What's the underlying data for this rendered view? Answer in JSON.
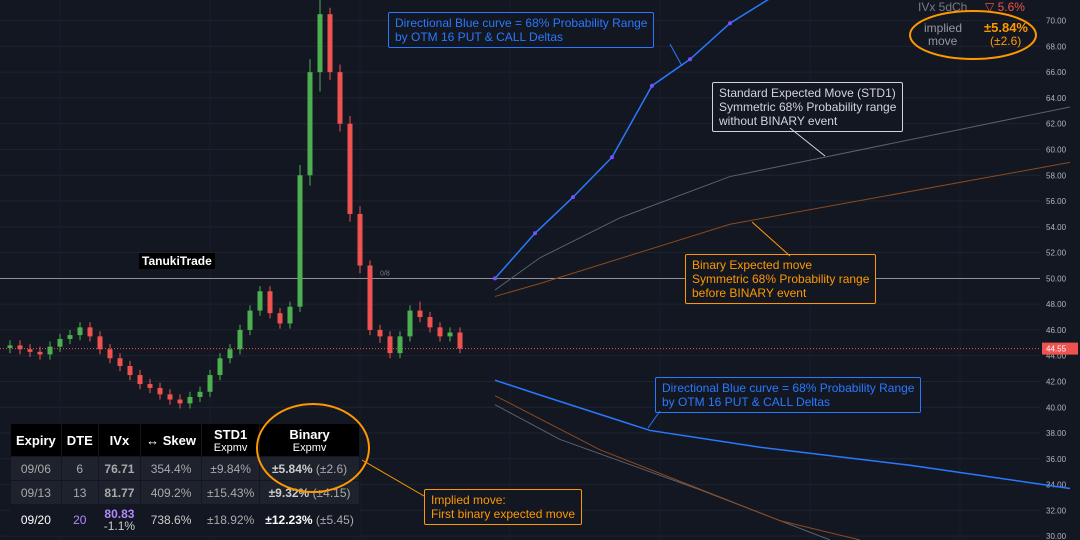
{
  "chart_data": {
    "type": "candlestick",
    "xlim": [
      -1,
      107
    ],
    "ylim": [
      29.7,
      71.6
    ],
    "yticks": [
      {
        "value": 30,
        "label": "30.00"
      },
      {
        "value": 32,
        "label": "32.00"
      },
      {
        "value": 34,
        "label": "34.00"
      },
      {
        "value": 36,
        "label": "36.00"
      },
      {
        "value": 38,
        "label": "38.00"
      },
      {
        "value": 40,
        "label": "40.00"
      },
      {
        "value": 42,
        "label": "42.00"
      },
      {
        "value": 44,
        "label": "44.00"
      },
      {
        "value": 46,
        "label": "46.00"
      },
      {
        "value": 48,
        "label": "48.00"
      },
      {
        "value": 50,
        "label": "50.00"
      },
      {
        "value": 52,
        "label": "52.00"
      },
      {
        "value": 54,
        "label": "54.00"
      },
      {
        "value": 56,
        "label": "56.00"
      },
      {
        "value": 58,
        "label": "58.00"
      },
      {
        "value": 60,
        "label": "60.00"
      },
      {
        "value": 62,
        "label": "62.00"
      },
      {
        "value": 64,
        "label": "64.00"
      },
      {
        "value": 66,
        "label": "66.00"
      },
      {
        "value": 68,
        "label": "68.00"
      },
      {
        "value": 70,
        "label": "70.00"
      }
    ],
    "grid": true,
    "up_color": "#4caf50",
    "down_color": "#ef5350",
    "open": [
      44.6,
      44.8,
      44.5,
      44.3,
      44.1,
      44.7,
      45.3,
      45.6,
      46.2,
      45.5,
      44.5,
      43.8,
      43.2,
      42.5,
      41.8,
      41.5,
      41.0,
      40.6,
      40.3,
      40.8,
      41.2,
      42.5,
      43.8,
      44.5,
      46.0,
      47.5,
      49.0,
      47.3,
      46.5,
      47.8,
      58.0,
      66.0,
      70.5,
      66.0,
      62.0,
      55.0,
      51.0,
      46.0,
      45.5,
      44.2,
      45.5,
      47.5,
      47.0,
      46.2,
      45.5,
      45.8
    ],
    "high": [
      45.2,
      45.2,
      44.9,
      44.7,
      45.1,
      45.7,
      46.0,
      46.6,
      46.6,
      45.9,
      44.9,
      44.2,
      43.6,
      42.9,
      42.2,
      41.9,
      41.4,
      41.0,
      41.2,
      41.6,
      42.9,
      44.2,
      44.9,
      46.4,
      47.9,
      49.4,
      49.4,
      47.7,
      48.2,
      58.8,
      67.0,
      72.0,
      71.0,
      66.6,
      62.6,
      55.6,
      51.4,
      46.4,
      45.9,
      45.9,
      47.9,
      48.2,
      47.4,
      46.6,
      46.2,
      46.2
    ],
    "low": [
      44.2,
      44.1,
      43.9,
      43.7,
      43.7,
      44.3,
      44.9,
      45.2,
      45.1,
      44.1,
      43.4,
      42.8,
      42.1,
      41.4,
      41.1,
      40.6,
      40.2,
      39.9,
      39.9,
      40.4,
      40.8,
      42.1,
      43.4,
      44.1,
      45.6,
      47.1,
      46.9,
      46.1,
      46.1,
      47.4,
      57.2,
      64.5,
      65.4,
      61.4,
      54.4,
      50.4,
      45.6,
      45.0,
      43.8,
      43.8,
      45.1,
      46.6,
      45.8,
      45.1,
      45.1,
      44.2
    ],
    "close": [
      44.8,
      44.5,
      44.3,
      44.1,
      44.7,
      45.3,
      45.6,
      46.2,
      45.5,
      44.5,
      43.8,
      43.2,
      42.5,
      41.8,
      41.5,
      41.0,
      40.6,
      40.3,
      40.8,
      41.2,
      42.5,
      43.8,
      44.5,
      46.0,
      47.5,
      49.0,
      47.3,
      46.5,
      47.8,
      58.0,
      66.0,
      70.5,
      66.0,
      62.0,
      55.0,
      51.0,
      46.0,
      45.5,
      44.2,
      45.5,
      47.5,
      47.0,
      46.2,
      45.5,
      45.8,
      44.55
    ],
    "hline": 50,
    "hline_label": "0/8",
    "last_price": 44.55,
    "curves": [
      {
        "color": "#2979ff",
        "x": [
          48.5,
          52.5,
          56.3,
          60.2,
          64.2,
          68,
          72,
          77
        ],
        "values": [
          50.0,
          53.5,
          56.3,
          59.4,
          64.95,
          67.0,
          69.8,
          72.2
        ]
      },
      {
        "color": "#2979ff",
        "x": [
          48.5,
          53,
          64,
          75,
          90,
          106
        ],
        "values": [
          42.1,
          40.95,
          38.2,
          36.9,
          35.5,
          33.7
        ]
      },
      {
        "color": "#5d606b",
        "x": [
          48.5,
          53,
          61,
          72,
          106
        ],
        "values": [
          49.1,
          51.6,
          54.7,
          57.9,
          63.3
        ]
      },
      {
        "color": "#8a4b1e",
        "x": [
          48.5,
          53,
          72,
          106
        ],
        "values": [
          48.6,
          49.6,
          54.2,
          59.0
        ]
      },
      {
        "color": "#5d606b",
        "x": [
          48.5,
          55,
          69,
          82
        ],
        "values": [
          40.2,
          37.5,
          33.6,
          29.7
        ]
      },
      {
        "color": "#8a4b1e",
        "x": [
          48.5,
          59,
          77,
          85
        ],
        "values": [
          40.9,
          36.7,
          31.2,
          29.7
        ]
      }
    ]
  },
  "brand": "TanukiTrade",
  "notes": [
    {
      "color": "#2979ff",
      "lines": [
        "Directional Blue curve =  68%  Probability Range",
        "by OTM 16 PUT & CALL Deltas"
      ]
    },
    {
      "color": "#d1d4dc",
      "lines": [
        "Standard Expected Move (STD1)",
        "Symmetric 68% Probability range",
        "without BINARY event"
      ]
    },
    {
      "color": "#ff9800",
      "lines": [
        "Binary Expected move",
        "Symmetric 68% Probability range",
        "before BINARY event"
      ]
    },
    {
      "color": "#2979ff",
      "lines": [
        "Directional Blue curve =  68%  Probability Range",
        "by OTM 16 PUT & CALL Deltas"
      ]
    },
    {
      "color": "#ff9800",
      "lines": [
        "Implied move:",
        "First binary expected move"
      ]
    }
  ],
  "ivx_panel": {
    "label": "IVx 5dCh",
    "change": "▽ 5.6%",
    "implied_label": [
      "implied",
      "move"
    ],
    "implied": "±5.84%",
    "implied_abs": "(±2.6)"
  },
  "table": {
    "header": [
      "Expiry",
      "DTE",
      "IVx",
      "↔ Skew",
      [
        "STD1",
        "Expmv"
      ],
      [
        "Binary",
        "Expmv"
      ]
    ],
    "rows": [
      [
        "09/06",
        "6",
        "76.71",
        "354.4%",
        "±9.84%",
        "±5.84%",
        "(±2.6)"
      ],
      [
        "09/13",
        "13",
        "81.77",
        "409.2%",
        "±15.43%",
        "±9.32%",
        "(±4.15)"
      ],
      [
        "09/20",
        "20",
        [
          "80.83",
          "-1.1%"
        ],
        "738.6%",
        "±18.92%",
        "±12.23%",
        "(±5.45)"
      ]
    ]
  }
}
